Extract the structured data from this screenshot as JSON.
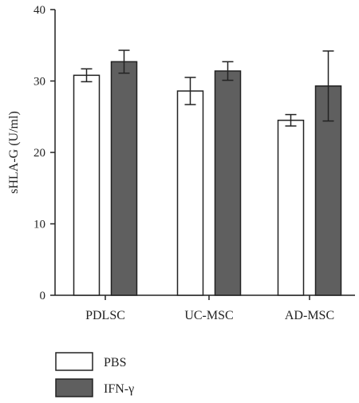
{
  "chart_data": {
    "type": "bar",
    "title": "",
    "xlabel": "",
    "ylabel": "sHLA-G (U/ml)",
    "ylim": [
      0,
      40
    ],
    "yticks": [
      0,
      10,
      20,
      30,
      40
    ],
    "categories": [
      "PDLSC",
      "UC-MSC",
      "AD-MSC"
    ],
    "series": [
      {
        "name": "PBS",
        "color": "#ffffff",
        "values": [
          30.8,
          28.6,
          24.5
        ],
        "errors": [
          0.9,
          1.9,
          0.8
        ]
      },
      {
        "name": "IFN-γ",
        "color": "#5f5f5f",
        "values": [
          32.7,
          31.4,
          29.3
        ],
        "errors": [
          1.6,
          1.3,
          4.9
        ]
      }
    ],
    "grid": false,
    "legend_position": "bottom-left",
    "error_bars": true
  }
}
